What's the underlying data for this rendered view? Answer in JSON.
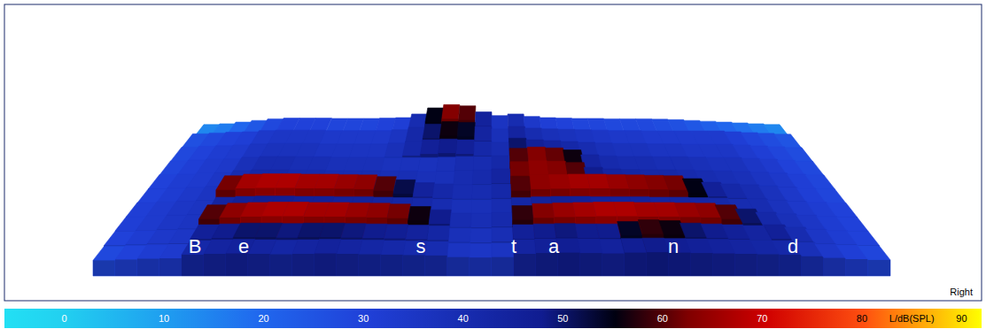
{
  "chart_data": {
    "type": "surface",
    "label": "Right",
    "tick_labels": false,
    "xlim": [
      0,
      36
    ],
    "ylim": [
      0,
      10
    ],
    "cells": [
      [
        28,
        30,
        32,
        33,
        42,
        44,
        45,
        44,
        43,
        44,
        45,
        44,
        43,
        42,
        41,
        40,
        36,
        35,
        36,
        44,
        46,
        47,
        46,
        45,
        47,
        48,
        47,
        46,
        45,
        44,
        43,
        42,
        38,
        34,
        31,
        29
      ],
      [
        30,
        32,
        34,
        35,
        46,
        48,
        50,
        50,
        49,
        50,
        50,
        49,
        48,
        47,
        45,
        43,
        38,
        37,
        39,
        46,
        48,
        49,
        48,
        48,
        54,
        58,
        56,
        50,
        48,
        46,
        44,
        46,
        40,
        35,
        32,
        30
      ],
      [
        31,
        33,
        35,
        36,
        60,
        64,
        66,
        67,
        67,
        66,
        66,
        65,
        64,
        62,
        56,
        48,
        40,
        39,
        41,
        58,
        63,
        65,
        66,
        67,
        67,
        66,
        66,
        65,
        64,
        60,
        50,
        42,
        38,
        35,
        32,
        30
      ],
      [
        31,
        33,
        35,
        36,
        44,
        46,
        47,
        47,
        46,
        46,
        45,
        45,
        44,
        43,
        42,
        40,
        38,
        38,
        40,
        43,
        45,
        46,
        46,
        45,
        45,
        45,
        44,
        44,
        43,
        42,
        40,
        40,
        37,
        34,
        32,
        30
      ],
      [
        30,
        32,
        34,
        36,
        62,
        66,
        67,
        67,
        66,
        66,
        65,
        64,
        60,
        52,
        45,
        42,
        40,
        40,
        42,
        60,
        64,
        65,
        66,
        66,
        65,
        64,
        63,
        62,
        55,
        46,
        42,
        40,
        37,
        34,
        31,
        29
      ],
      [
        30,
        32,
        33,
        35,
        40,
        42,
        42,
        41,
        41,
        40,
        40,
        40,
        39,
        39,
        38,
        38,
        40,
        41,
        44,
        62,
        64,
        63,
        60,
        48,
        44,
        43,
        42,
        42,
        41,
        40,
        39,
        38,
        36,
        34,
        31,
        29
      ],
      [
        29,
        31,
        33,
        34,
        38,
        40,
        40,
        39,
        39,
        38,
        38,
        38,
        37,
        37,
        37,
        38,
        40,
        40,
        42,
        60,
        63,
        61,
        56,
        44,
        41,
        40,
        40,
        39,
        39,
        38,
        37,
        37,
        35,
        33,
        30,
        28
      ],
      [
        28,
        30,
        32,
        33,
        36,
        37,
        37,
        37,
        36,
        36,
        36,
        36,
        38,
        42,
        46,
        48,
        46,
        42,
        40,
        50,
        46,
        44,
        42,
        40,
        38,
        37,
        37,
        36,
        36,
        35,
        35,
        35,
        33,
        31,
        29,
        27
      ],
      [
        26,
        28,
        30,
        31,
        34,
        35,
        35,
        35,
        34,
        34,
        34,
        34,
        36,
        42,
        50,
        56,
        54,
        44,
        38,
        44,
        40,
        38,
        37,
        36,
        35,
        34,
        34,
        33,
        33,
        33,
        33,
        33,
        31,
        29,
        27,
        25
      ],
      [
        14,
        16,
        20,
        24,
        28,
        30,
        30,
        30,
        29,
        29,
        29,
        30,
        31,
        40,
        55,
        63,
        60,
        45,
        36,
        40,
        34,
        31,
        30,
        29,
        29,
        28,
        28,
        28,
        27,
        26,
        24,
        22,
        20,
        18,
        16,
        14
      ]
    ],
    "annotations": [
      {
        "text": "B",
        "x": 4.6
      },
      {
        "text": "e",
        "x": 6.8
      },
      {
        "text": "s",
        "x": 14.8
      },
      {
        "text": "t",
        "x": 19
      },
      {
        "text": "a",
        "x": 20.8
      },
      {
        "text": "n",
        "x": 26.2
      },
      {
        "text": "d",
        "x": 31.6
      }
    ],
    "colorbar": {
      "range": [
        -6,
        92
      ],
      "ticks": [
        0,
        10,
        20,
        30,
        40,
        50,
        60,
        70,
        80,
        90
      ],
      "title": "L/dB(SPL)"
    }
  }
}
